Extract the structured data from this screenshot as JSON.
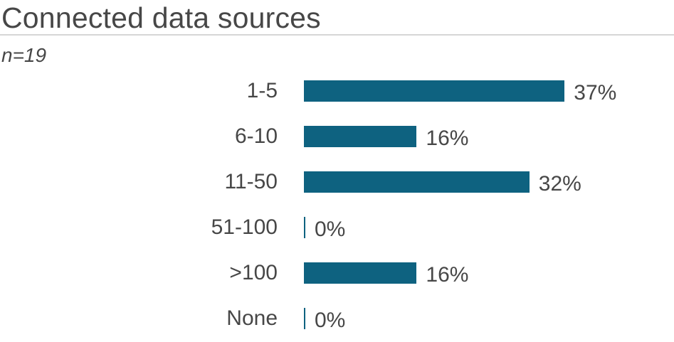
{
  "header": {
    "title": "Connected data sources",
    "subtitle": "n=19"
  },
  "chart_data": {
    "type": "bar",
    "orientation": "horizontal",
    "title": "Connected data sources",
    "subtitle": "n=19",
    "categories": [
      "1-5",
      "6-10",
      "11-50",
      "51-100",
      ">100",
      "None"
    ],
    "values": [
      37,
      16,
      32,
      0,
      16,
      0
    ],
    "value_labels": [
      "37%",
      "16%",
      "32%",
      "0%",
      "16%",
      "0%"
    ],
    "unit": "percent",
    "xlim": [
      0,
      40
    ],
    "grid": false,
    "legend": false,
    "colors": {
      "bar": "#0e6280",
      "text": "#474747",
      "divider": "#d6d6d6"
    }
  }
}
